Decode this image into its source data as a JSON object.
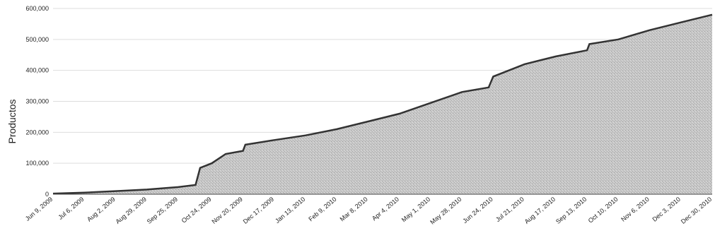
{
  "chart_data": {
    "type": "area",
    "title": "",
    "xlabel": "",
    "ylabel": "Productos",
    "ylim": [
      0,
      600000
    ],
    "y_ticks": [
      0,
      100000,
      200000,
      300000,
      400000,
      500000,
      600000
    ],
    "y_tick_labels": [
      "0",
      "100,000",
      "200,000",
      "300,000",
      "400,000",
      "500,000",
      "600,000"
    ],
    "x_tick_labels": [
      "Jun 9, 2009",
      "Jul 6, 2009",
      "Aug 2, 2009",
      "Aug 29, 2009",
      "Sep 25, 2009",
      "Oct 24, 2009",
      "Nov 20, 2009",
      "Dec 17, 2009",
      "Jan 13, 2010",
      "Feb 9, 2010",
      "Mar 8, 2010",
      "Apr 4, 2010",
      "May 1, 2010",
      "May 28, 2010",
      "Jun 24, 2010",
      "Jul 21, 2010",
      "Aug 17, 2010",
      "Sep 13, 2010",
      "Oct 10, 2010",
      "Nov 6, 2010",
      "Dec 3, 2010",
      "Dec 30, 2010"
    ],
    "grid": "horizontal",
    "fill_color": "#c8c8c8",
    "line_color": "#333333",
    "series": [
      {
        "x": [
          "Jun 9, 2009",
          "Jul 6, 2009",
          "Aug 2, 2009",
          "Aug 29, 2009",
          "Sep 25, 2009",
          "Oct 10, 2009",
          "Oct 14, 2009",
          "Oct 24, 2009",
          "Nov 5, 2009",
          "Nov 20, 2009",
          "Nov 22, 2009",
          "Dec 17, 2009",
          "Jan 13, 2010",
          "Feb 9, 2010",
          "Mar 8, 2010",
          "Apr 4, 2010",
          "May 1, 2010",
          "May 28, 2010",
          "Jun 20, 2010",
          "Jun 24, 2010",
          "Jul 21, 2010",
          "Aug 17, 2010",
          "Sep 13, 2010",
          "Sep 15, 2010",
          "Oct 10, 2010",
          "Nov 6, 2010",
          "Dec 3, 2010",
          "Dec 30, 2010"
        ],
        "values": [
          2000,
          5000,
          10000,
          15000,
          23000,
          30000,
          85000,
          100000,
          130000,
          140000,
          160000,
          175000,
          190000,
          210000,
          235000,
          260000,
          295000,
          330000,
          345000,
          380000,
          420000,
          445000,
          465000,
          485000,
          500000,
          530000,
          555000,
          580000
        ]
      }
    ]
  }
}
